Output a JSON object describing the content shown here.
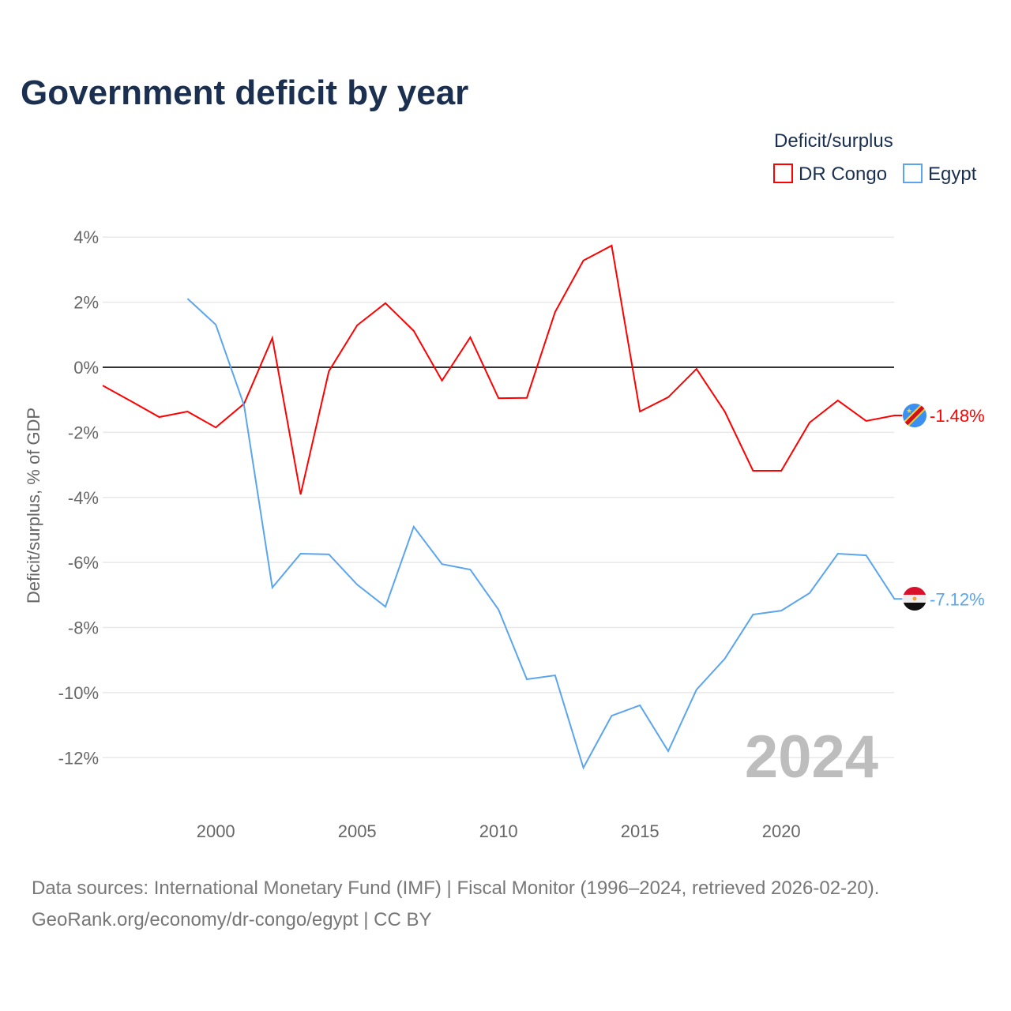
{
  "chart_data": {
    "type": "line",
    "title": "Government deficit by year",
    "xlabel": "",
    "ylabel": "Deficit/surplus, % of GDP",
    "xlim": [
      1996,
      2024
    ],
    "ylim": [
      -13,
      4.5
    ],
    "x_ticks": [
      2000,
      2005,
      2010,
      2015,
      2020
    ],
    "y_ticks": [
      4,
      2,
      0,
      -2,
      -4,
      -6,
      -8,
      -10,
      -12
    ],
    "y_tick_labels": [
      "4%",
      "2%",
      "0%",
      "-2%",
      "-4%",
      "-6%",
      "-8%",
      "-10%",
      "-12%"
    ],
    "grid": true,
    "legend_title": "Deficit/surplus",
    "legend_position": "top-right",
    "year_watermark": "2024",
    "series": [
      {
        "name": "DR Congo",
        "color": "#ff0000",
        "end_label": "-1.48%",
        "x": [
          1996,
          1997,
          1998,
          1999,
          2000,
          2001,
          2002,
          2003,
          2004,
          2005,
          2006,
          2007,
          2008,
          2009,
          2010,
          2011,
          2012,
          2013,
          2014,
          2015,
          2016,
          2017,
          2018,
          2019,
          2020,
          2021,
          2022,
          2023,
          2024
        ],
        "values": [
          -0.56,
          -1.04,
          -1.53,
          -1.36,
          -1.85,
          -1.12,
          0.9,
          -3.91,
          -0.12,
          1.29,
          1.97,
          1.12,
          -0.41,
          0.92,
          -0.95,
          -0.94,
          1.7,
          3.28,
          3.74,
          -1.36,
          -0.92,
          -0.05,
          -1.36,
          -3.18,
          -3.18,
          -1.7,
          -1.02,
          -1.65,
          -1.48
        ]
      },
      {
        "name": "Egypt",
        "color": "#5aa5ee",
        "end_label": "-7.12%",
        "x": [
          1999,
          2000,
          2001,
          2002,
          2003,
          2004,
          2005,
          2006,
          2007,
          2008,
          2009,
          2010,
          2011,
          2012,
          2013,
          2014,
          2015,
          2016,
          2017,
          2018,
          2019,
          2020,
          2021,
          2022,
          2023,
          2024
        ],
        "values": [
          2.11,
          1.31,
          -1.17,
          -6.77,
          -5.73,
          -5.75,
          -6.68,
          -7.36,
          -4.9,
          -6.05,
          -6.22,
          -7.45,
          -9.59,
          -9.47,
          -12.31,
          -10.71,
          -10.39,
          -11.8,
          -9.91,
          -8.96,
          -7.6,
          -7.48,
          -6.94,
          -5.73,
          -5.78,
          -7.12
        ]
      }
    ]
  },
  "footer": {
    "line1": "Data sources: International Monetary Fund (IMF) | Fiscal Monitor (1996–2024, retrieved 2026-02-20).",
    "line2": "GeoRank.org/economy/dr-congo/egypt | CC BY"
  }
}
